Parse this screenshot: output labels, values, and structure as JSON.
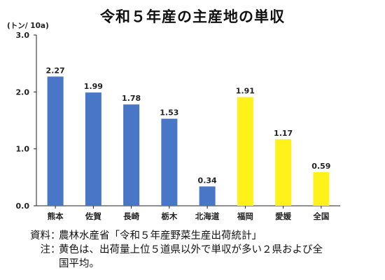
{
  "chart_data": {
    "type": "bar",
    "title": "令和５年産の主産地の単収",
    "ylabel": "(トン/ 10a)",
    "categories": [
      "熊本",
      "佐賀",
      "長崎",
      "栃木",
      "北海道",
      "福岡",
      "愛媛",
      "全国"
    ],
    "values": [
      2.27,
      1.99,
      1.78,
      1.53,
      0.34,
      1.91,
      1.17,
      0.59
    ],
    "value_labels": [
      "2.27",
      "1.99",
      "1.78",
      "1.53",
      "0.34",
      "1.91",
      "1.17",
      "0.59"
    ],
    "colors": [
      "#4A76C8",
      "#4A76C8",
      "#4A76C8",
      "#4A76C8",
      "#4A76C8",
      "#FFF21A",
      "#FFF21A",
      "#FFF21A"
    ],
    "ylim": [
      0,
      3.0
    ],
    "yticks": [
      "0.0",
      "1.0",
      "2.0",
      "3.0"
    ],
    "ytick_values": [
      0,
      1,
      2,
      3
    ],
    "grid": false,
    "legend": "none"
  },
  "notes": {
    "source_label": "資料",
    "source_text": "農林水産省「令和５年産野菜生産出荷統計」",
    "note_label": "注",
    "note_text_1": "黄色は、出荷量上位５道県以外で単収が多い２県および全",
    "note_text_2": "国平均。",
    "colon": "："
  }
}
